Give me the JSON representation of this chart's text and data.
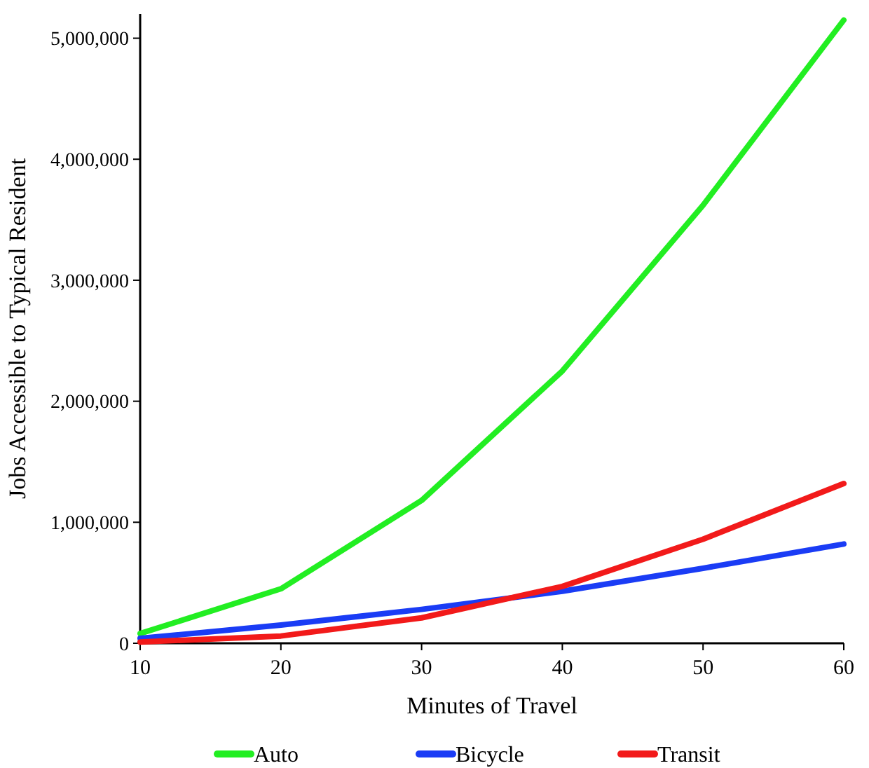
{
  "chart_data": {
    "type": "line",
    "xlabel": "Minutes of Travel",
    "ylabel": "Jobs Accessible to Typical Resident",
    "x": [
      10,
      20,
      30,
      40,
      50,
      60
    ],
    "series": [
      {
        "name": "Auto",
        "color": "#22ee22",
        "values": [
          80000,
          450000,
          1180000,
          2250000,
          3620000,
          5150000
        ]
      },
      {
        "name": "Bicycle",
        "color": "#1a3cf5",
        "values": [
          40000,
          150000,
          280000,
          430000,
          620000,
          820000
        ]
      },
      {
        "name": "Transit",
        "color": "#f21a1a",
        "values": [
          10000,
          60000,
          210000,
          470000,
          860000,
          1320000
        ]
      }
    ],
    "xlim": [
      10,
      60
    ],
    "xticks": [
      10,
      20,
      30,
      40,
      50,
      60
    ],
    "ylim": [
      0,
      5200000
    ],
    "yticks": [
      {
        "value": 0,
        "label": "0"
      },
      {
        "value": 1000000,
        "label": "1,000,000"
      },
      {
        "value": 2000000,
        "label": "2,000,000"
      },
      {
        "value": 3000000,
        "label": "3,000,000"
      },
      {
        "value": 4000000,
        "label": "4,000,000"
      },
      {
        "value": 5000000,
        "label": "5,000,000"
      }
    ],
    "grid": false,
    "legend": "bottom",
    "marker": "none",
    "line_style": "solid"
  }
}
